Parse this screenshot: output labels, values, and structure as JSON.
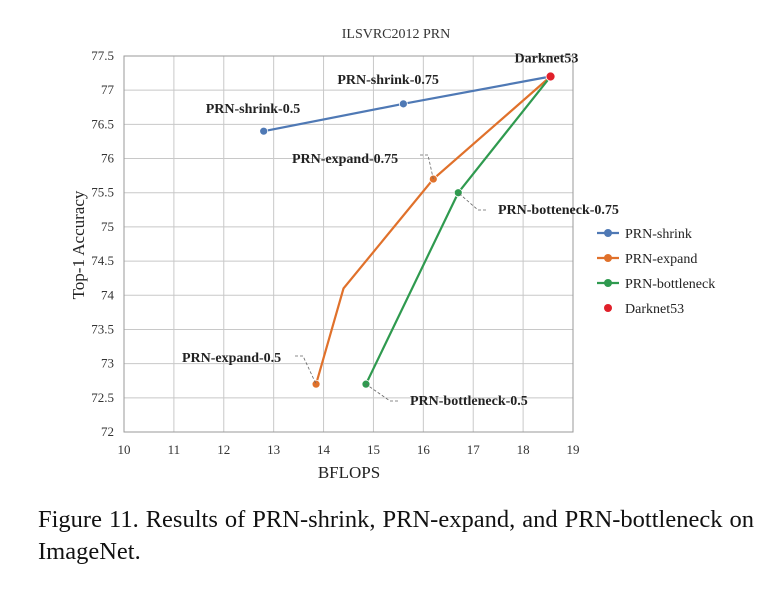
{
  "chart_data": {
    "type": "line",
    "title": "ILSVRC2012 PRN",
    "xlabel": "BFLOPS",
    "ylabel": "Top-1 Accuracy",
    "xlim": [
      10,
      19
    ],
    "ylim": [
      72,
      77.5
    ],
    "x_ticks": [
      "10",
      "11",
      "12",
      "13",
      "14",
      "15",
      "16",
      "17",
      "18",
      "19"
    ],
    "y_ticks": [
      "72",
      "72.5",
      "73",
      "73.5",
      "74",
      "74.5",
      "75",
      "75.5",
      "76",
      "76.5",
      "77",
      "77.5"
    ],
    "grid": true,
    "legend_position": "right",
    "series": [
      {
        "name": "PRN-shrink",
        "color": "#4f79b5",
        "points": [
          [
            12.8,
            76.4
          ],
          [
            15.6,
            76.8
          ],
          [
            18.55,
            77.2
          ]
        ],
        "labels": [
          "PRN-shrink-0.5",
          "PRN-shrink-0.75",
          ""
        ]
      },
      {
        "name": "PRN-expand",
        "color": "#e0712b",
        "points": [
          [
            13.85,
            72.7
          ],
          [
            14.4,
            74.1
          ],
          [
            16.2,
            75.7
          ],
          [
            18.55,
            77.2
          ]
        ],
        "labels": [
          "PRN-expand-0.5",
          "",
          "PRN-expand-0.75",
          ""
        ]
      },
      {
        "name": "PRN-bottleneck",
        "color": "#2f9a4f",
        "points": [
          [
            14.85,
            72.7
          ],
          [
            16.7,
            75.5
          ],
          [
            18.55,
            77.2
          ]
        ],
        "labels": [
          "PRN-bottleneck-0.5",
          "PRN-botteneck-0.75",
          ""
        ]
      },
      {
        "name": "Darknet53",
        "color": "#e0202a",
        "points": [
          [
            18.55,
            77.2
          ]
        ],
        "labels": [
          "Darknet53"
        ]
      }
    ]
  },
  "caption": "Figure 11. Results of PRN-shrink, PRN-expand, and PRN-bottleneck on ImageNet."
}
